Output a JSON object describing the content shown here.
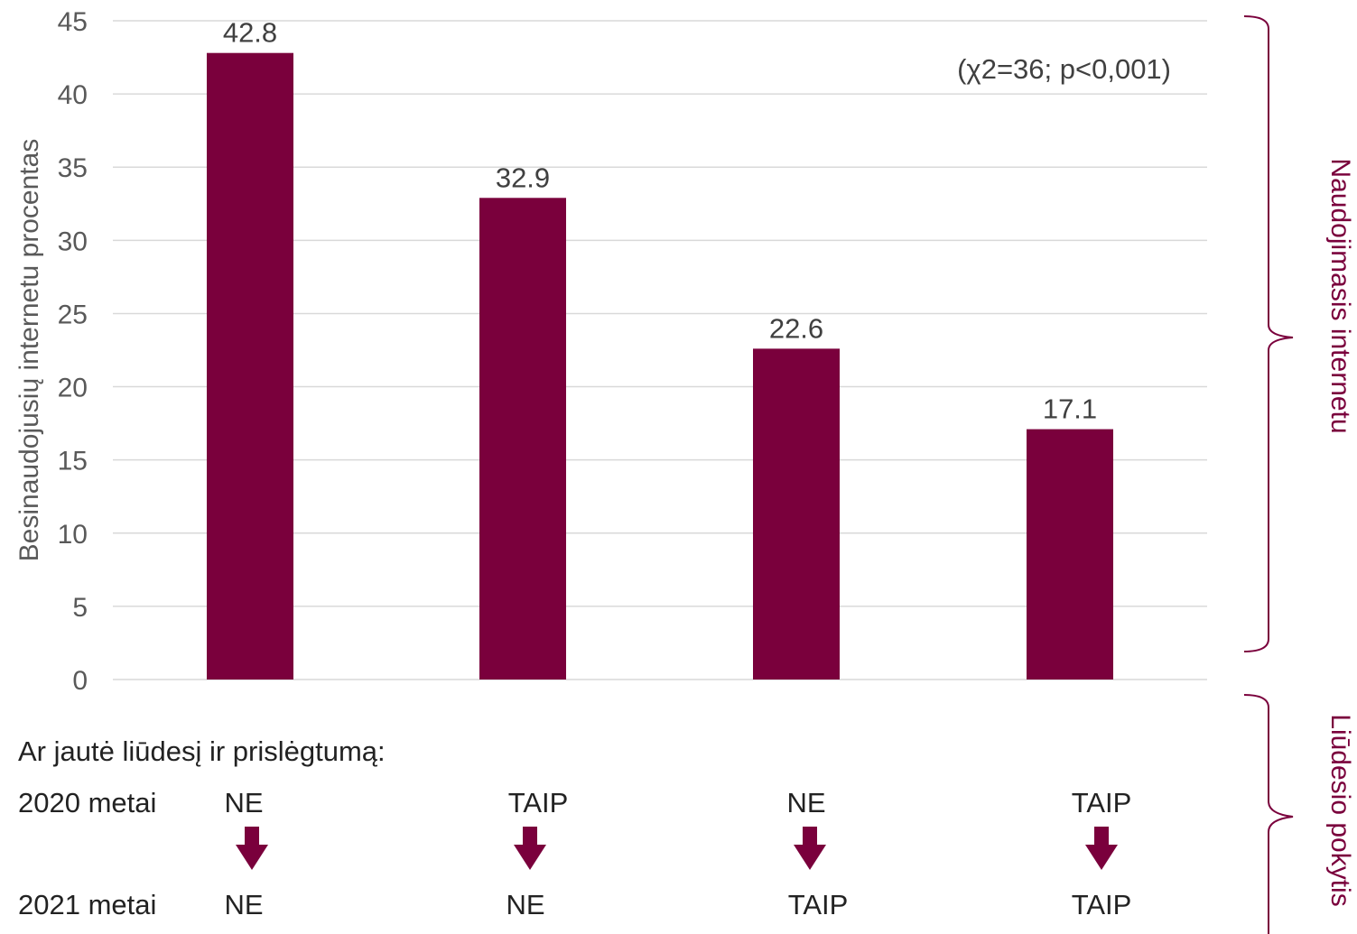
{
  "chart_data": {
    "type": "bar",
    "ylabel": "Besinaudojusių internetu procentas",
    "ylim": [
      0,
      45
    ],
    "yticks": [
      0,
      5,
      10,
      15,
      20,
      25,
      30,
      35,
      40,
      45
    ],
    "values": [
      42.8,
      32.9,
      22.6,
      17.1
    ],
    "value_labels": [
      "42.8",
      "32.9",
      "22.6",
      "17.1"
    ],
    "bar_color": "#7a003c",
    "grid": true,
    "annotation": "(χ2=36; p<0,001)"
  },
  "side_labels": {
    "top": "Naudojimasis internetu",
    "bottom": "Liūdesio pokytis"
  },
  "legend_block": {
    "question": "Ar jautė liūdesį ir prislėgtumą:",
    "row1_label": "2020 metai",
    "row2_label": "2021 metai",
    "year2020": [
      "NE",
      "TAIP",
      "NE",
      "TAIP"
    ],
    "year2021": [
      "NE",
      "NE",
      "TAIP",
      "TAIP"
    ]
  },
  "colors": {
    "accent": "#7a003c",
    "grid": "#d9d9d9"
  }
}
